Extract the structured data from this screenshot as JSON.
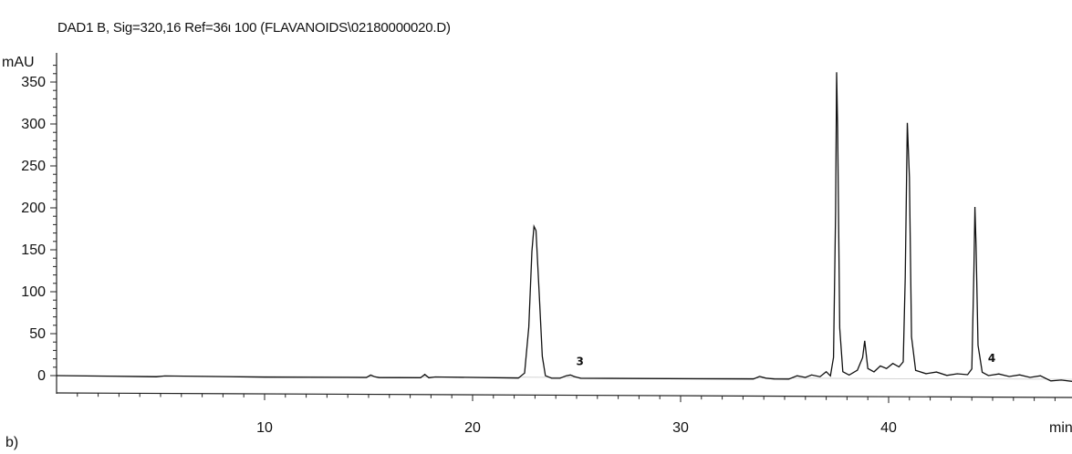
{
  "chart_data": {
    "type": "line",
    "title": "DAD1 B, Sig=320,16 Ref=36ι 100 (FLAVANOIDS\\02180000020.D)",
    "panel_label": "b)",
    "ylabel": "mAU",
    "xlabel": "min",
    "xlim": [
      0,
      50
    ],
    "ylim": [
      -10,
      375
    ],
    "x_ticks": [
      10,
      20,
      30,
      40
    ],
    "y_ticks": [
      0,
      50,
      100,
      150,
      200,
      250,
      300,
      350
    ],
    "grid": false,
    "series": [
      {
        "points": [
          [
            0,
            0
          ],
          [
            4.8,
            -1
          ],
          [
            5.2,
            0
          ],
          [
            10,
            -1
          ],
          [
            14.9,
            -1
          ],
          [
            15.1,
            2
          ],
          [
            15.3,
            0
          ],
          [
            15.5,
            -1
          ],
          [
            17.5,
            -1
          ],
          [
            17.7,
            3
          ],
          [
            17.9,
            -1
          ],
          [
            18.2,
            0
          ],
          [
            22.2,
            -1
          ],
          [
            22.5,
            5
          ],
          [
            22.7,
            60
          ],
          [
            22.85,
            150
          ],
          [
            22.95,
            180
          ],
          [
            23.05,
            175
          ],
          [
            23.2,
            100
          ],
          [
            23.35,
            25
          ],
          [
            23.5,
            2
          ],
          [
            23.8,
            -1
          ],
          [
            24.2,
            -1
          ],
          [
            24.5,
            2
          ],
          [
            24.7,
            3
          ],
          [
            24.9,
            1
          ],
          [
            25.2,
            -1
          ],
          [
            33.5,
            -1
          ],
          [
            33.8,
            2
          ],
          [
            34.1,
            0
          ],
          [
            34.5,
            -1
          ],
          [
            35.2,
            -1
          ],
          [
            35.6,
            3
          ],
          [
            36.0,
            1
          ],
          [
            36.3,
            4
          ],
          [
            36.7,
            2
          ],
          [
            37.0,
            8
          ],
          [
            37.2,
            3
          ],
          [
            37.35,
            25
          ],
          [
            37.45,
            200
          ],
          [
            37.5,
            365
          ],
          [
            37.55,
            300
          ],
          [
            37.65,
            60
          ],
          [
            37.8,
            8
          ],
          [
            38.1,
            4
          ],
          [
            38.5,
            10
          ],
          [
            38.75,
            25
          ],
          [
            38.85,
            45
          ],
          [
            39.0,
            12
          ],
          [
            39.3,
            8
          ],
          [
            39.6,
            15
          ],
          [
            39.9,
            12
          ],
          [
            40.2,
            18
          ],
          [
            40.5,
            14
          ],
          [
            40.7,
            20
          ],
          [
            40.8,
            120
          ],
          [
            40.9,
            305
          ],
          [
            41.0,
            240
          ],
          [
            41.1,
            50
          ],
          [
            41.3,
            10
          ],
          [
            41.8,
            6
          ],
          [
            42.3,
            8
          ],
          [
            42.8,
            4
          ],
          [
            43.3,
            6
          ],
          [
            43.8,
            5
          ],
          [
            44.0,
            12
          ],
          [
            44.1,
            130
          ],
          [
            44.15,
            205
          ],
          [
            44.2,
            160
          ],
          [
            44.3,
            40
          ],
          [
            44.5,
            8
          ],
          [
            44.8,
            4
          ],
          [
            45.3,
            6
          ],
          [
            45.8,
            3
          ],
          [
            46.3,
            5
          ],
          [
            46.8,
            2
          ],
          [
            47.3,
            4
          ],
          [
            47.8,
            -2
          ],
          [
            48.3,
            -1
          ],
          [
            49.0,
            -3
          ],
          [
            50,
            -4
          ]
        ]
      }
    ],
    "annotations": [
      {
        "text": "3",
        "x": 24.8,
        "y": 8
      },
      {
        "text": "4",
        "x": 44.6,
        "y": 12
      }
    ]
  }
}
